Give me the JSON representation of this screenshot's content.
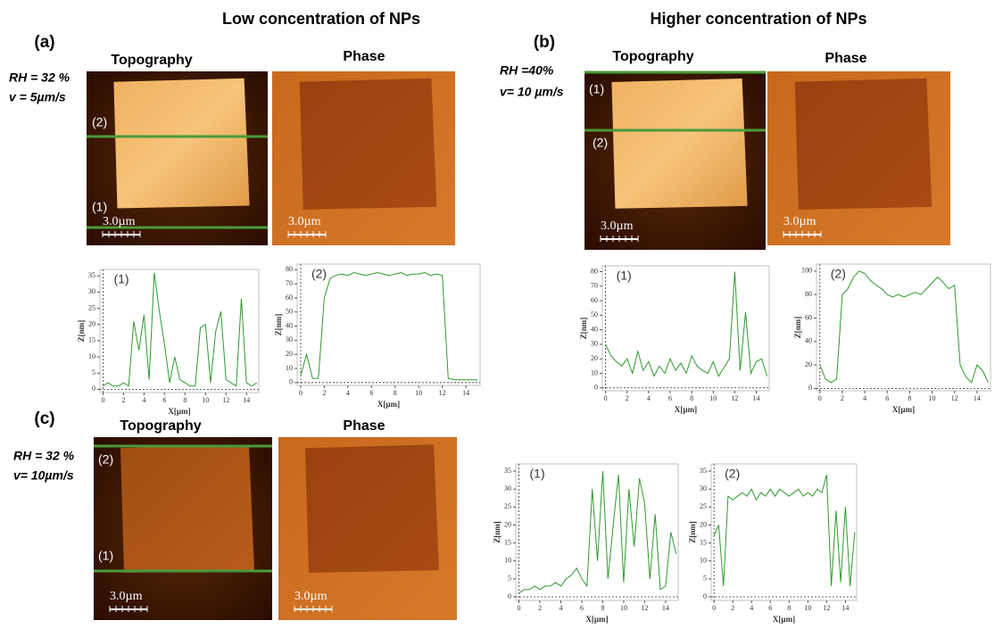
{
  "headers": [
    "Low concentration of NPs",
    "Higher concentration of NPs"
  ],
  "panels": [
    {
      "label": "(a)",
      "conditions": [
        "RH = 32 %",
        "v = 5µm/s"
      ],
      "images": [
        {
          "title": "Topography",
          "scale_bar": "3.0µm",
          "line_labels": [
            "(2)",
            "(1)"
          ]
        },
        {
          "title": "Phase",
          "scale_bar": "3.0µm"
        }
      ]
    },
    {
      "label": "(b)",
      "conditions": [
        "RH =40%",
        "v= 10 µm/s"
      ],
      "images": [
        {
          "title": "Topography",
          "scale_bar": "3.0µm",
          "line_labels": [
            "(1)",
            "(2)"
          ]
        },
        {
          "title": "Phase",
          "scale_bar": "3.0µm"
        }
      ]
    },
    {
      "label": "(c)",
      "conditions": [
        "RH = 32 %",
        "v= 10µm/s"
      ],
      "images": [
        {
          "title": "Topography",
          "scale_bar": "3.0µm",
          "line_labels": [
            "(2)",
            "(1)"
          ]
        },
        {
          "title": "Phase",
          "scale_bar": "3.0µm"
        }
      ]
    }
  ],
  "chart_data": [
    {
      "type": "line",
      "annotation": "(1)",
      "xlabel": "X[µm]",
      "ylabel": "Z[nm]",
      "color": "#2e9a2e",
      "x": [
        0,
        0.5,
        1,
        1.5,
        2,
        2.5,
        3,
        3.5,
        4,
        4.5,
        5,
        5.5,
        6,
        6.5,
        7,
        7.5,
        8,
        8.5,
        9,
        9.5,
        10,
        10.5,
        11,
        11.5,
        12,
        12.5,
        13,
        13.5,
        14,
        14.5,
        15
      ],
      "values": [
        1,
        2,
        1,
        1,
        2,
        1,
        21,
        12,
        23,
        3,
        36,
        24,
        14,
        2,
        10,
        3,
        2,
        1,
        1,
        19,
        20,
        2,
        18,
        24,
        3,
        2,
        1,
        28,
        2,
        1,
        2
      ],
      "xlim": [
        -0.3,
        15.2
      ],
      "ylim": [
        -1,
        37
      ],
      "xticks": [
        0,
        2,
        4,
        6,
        8,
        10,
        12,
        14
      ],
      "yticks": [
        0,
        5,
        10,
        15,
        20,
        25,
        30,
        35
      ]
    },
    {
      "type": "line",
      "annotation": "(2)",
      "xlabel": "X[µm]",
      "ylabel": "Z[nm]",
      "color": "#2e9a2e",
      "x": [
        0,
        0.5,
        1,
        1.5,
        2,
        2.5,
        3,
        3.5,
        4,
        4.5,
        5,
        5.5,
        6,
        6.5,
        7,
        7.5,
        8,
        8.5,
        9,
        9.5,
        10,
        10.5,
        11,
        11.5,
        12,
        12.5,
        13,
        13.5,
        14,
        14.5,
        15
      ],
      "values": [
        5,
        20,
        3,
        3,
        60,
        74,
        76,
        77,
        76,
        78,
        77,
        76,
        77,
        78,
        77,
        76,
        77,
        78,
        76,
        77,
        77,
        78,
        76,
        77,
        76,
        3,
        2,
        2,
        2,
        2,
        2
      ],
      "xlim": [
        -0.3,
        15.2
      ],
      "ylim": [
        -2,
        84
      ],
      "xticks": [
        0,
        2,
        4,
        6,
        8,
        10,
        12,
        14
      ],
      "yticks": [
        0,
        10,
        20,
        30,
        40,
        50,
        60,
        70,
        80
      ]
    },
    {
      "type": "line",
      "annotation": "(1)",
      "xlabel": "X[µm]",
      "ylabel": "Z[nm]",
      "color": "#2e9a2e",
      "x": [
        0,
        0.5,
        1,
        1.5,
        2,
        2.5,
        3,
        3.5,
        4,
        4.5,
        5,
        5.5,
        6,
        6.5,
        7,
        7.5,
        8,
        8.5,
        9,
        9.5,
        10,
        10.5,
        11,
        11.5,
        12,
        12.5,
        13,
        13.5,
        14,
        14.5,
        15
      ],
      "values": [
        30,
        22,
        18,
        15,
        20,
        10,
        25,
        12,
        18,
        8,
        15,
        10,
        20,
        12,
        17,
        10,
        22,
        15,
        12,
        10,
        18,
        8,
        14,
        20,
        80,
        12,
        52,
        10,
        18,
        20,
        8
      ],
      "xlim": [
        -0.3,
        15.2
      ],
      "ylim": [
        -2,
        84
      ],
      "xticks": [
        0,
        2,
        4,
        6,
        8,
        10,
        12,
        14
      ],
      "yticks": [
        0,
        10,
        20,
        30,
        40,
        50,
        60,
        70,
        80
      ]
    },
    {
      "type": "line",
      "annotation": "(2)",
      "xlabel": "X[µm]",
      "ylabel": "Z[nm]",
      "color": "#2e9a2e",
      "x": [
        0,
        0.5,
        1,
        1.5,
        2,
        2.5,
        3,
        3.5,
        4,
        4.5,
        5,
        5.5,
        6,
        6.5,
        7,
        7.5,
        8,
        8.5,
        9,
        9.5,
        10,
        10.5,
        11,
        11.5,
        12,
        12.5,
        13,
        13.5,
        14,
        14.5,
        15
      ],
      "values": [
        20,
        8,
        5,
        8,
        80,
        85,
        95,
        100,
        98,
        92,
        88,
        85,
        80,
        78,
        80,
        78,
        80,
        82,
        80,
        85,
        90,
        95,
        90,
        85,
        88,
        20,
        10,
        5,
        20,
        15,
        5
      ],
      "xlim": [
        -0.3,
        15.2
      ],
      "ylim": [
        -2,
        106
      ],
      "xticks": [
        0,
        2,
        4,
        6,
        8,
        10,
        12,
        14
      ],
      "yticks": [
        0,
        20,
        40,
        60,
        80,
        100
      ]
    },
    {
      "type": "line",
      "annotation": "(1)",
      "xlabel": "X[µm]",
      "ylabel": "Z[nm]",
      "color": "#2e9a2e",
      "x": [
        0,
        0.5,
        1,
        1.5,
        2,
        2.5,
        3,
        3.5,
        4,
        4.5,
        5,
        5.5,
        6,
        6.5,
        7,
        7.5,
        8,
        8.5,
        9,
        9.5,
        10,
        10.5,
        11,
        11.5,
        12,
        12.5,
        13,
        13.5,
        14,
        14.5,
        15
      ],
      "values": [
        1,
        2,
        2,
        3,
        2,
        3,
        3,
        4,
        3,
        5,
        6,
        8,
        5,
        3,
        30,
        10,
        35,
        5,
        20,
        34,
        4,
        30,
        14,
        33,
        26,
        5,
        23,
        2,
        3,
        18,
        12
      ],
      "xlim": [
        -0.3,
        15.2
      ],
      "ylim": [
        -1,
        37
      ],
      "xticks": [
        0,
        2,
        4,
        6,
        8,
        10,
        12,
        14
      ],
      "yticks": [
        0,
        5,
        10,
        15,
        20,
        25,
        30,
        35
      ]
    },
    {
      "type": "line",
      "annotation": "(2)",
      "xlabel": "X[µm]",
      "ylabel": "Z[nm]",
      "color": "#2e9a2e",
      "x": [
        0,
        0.5,
        1,
        1.5,
        2,
        2.5,
        3,
        3.5,
        4,
        4.5,
        5,
        5.5,
        6,
        6.5,
        7,
        7.5,
        8,
        8.5,
        9,
        9.5,
        10,
        10.5,
        11,
        11.5,
        12,
        12.5,
        13,
        13.5,
        14,
        14.5,
        15
      ],
      "values": [
        17,
        20,
        3,
        28,
        27,
        28,
        29,
        28,
        30,
        27,
        29,
        28,
        30,
        28,
        30,
        29,
        28,
        29,
        30,
        28,
        29,
        28,
        30,
        29,
        34,
        3,
        24,
        4,
        25,
        3,
        18
      ],
      "xlim": [
        -0.3,
        15.2
      ],
      "ylim": [
        -1,
        37
      ],
      "xticks": [
        0,
        2,
        4,
        6,
        8,
        10,
        12,
        14
      ],
      "yticks": [
        0,
        5,
        10,
        15,
        20,
        25,
        30,
        35
      ]
    }
  ]
}
